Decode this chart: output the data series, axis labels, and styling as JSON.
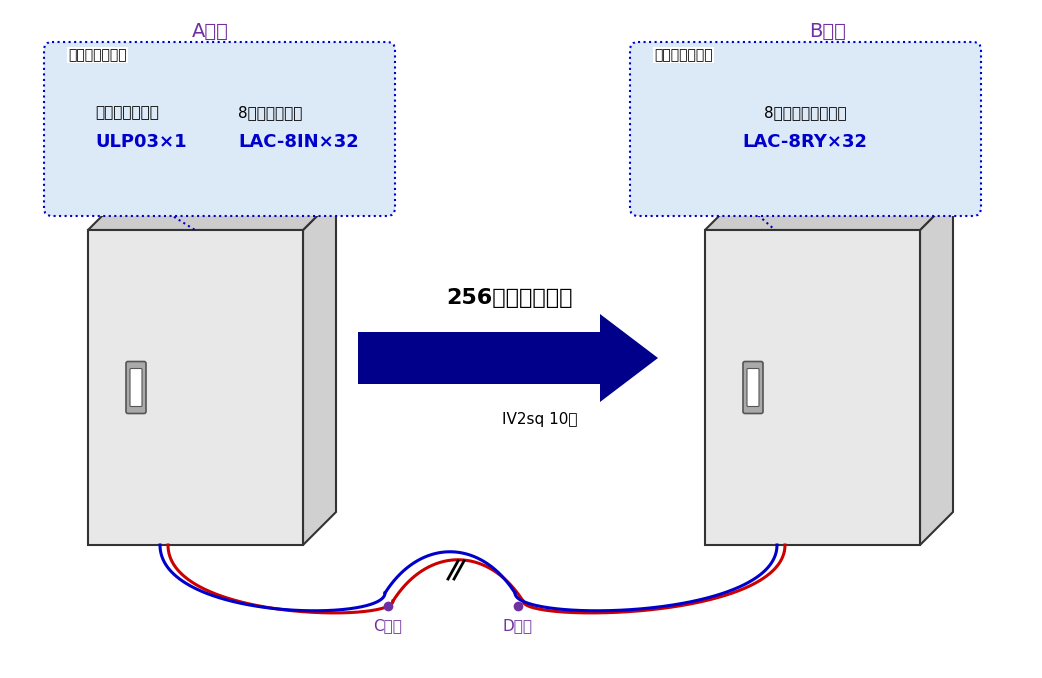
{
  "bg_color": "#ffffff",
  "fig_width": 10.42,
  "fig_height": 6.78,
  "a_label": "A地点",
  "b_label": "B地点",
  "a_label_color": "#7030A0",
  "b_label_color": "#7030A0",
  "sender_unit_label": "送り側ユニット",
  "receiver_unit_label": "受け側ユニット",
  "sender_box1_line1": "伝送メイン基板",
  "sender_box1_line2": "ULP03×1",
  "sender_box2_line1": "8接点入力基板",
  "sender_box2_line2": "LAC-8IN×32",
  "receiver_box1_line1": "8点リレー出力基板",
  "receiver_box1_line2": "LAC-8RY×32",
  "bubble_bg": "#dce9f7",
  "bubble_border": "#0000cc",
  "text_dark": "#000000",
  "text_blue": "#0000cc",
  "text_purple": "#7030A0",
  "arrow_label": "256点の接点信号",
  "arrow_color": "#00008B",
  "cable_label": "IV2sq 10㎨",
  "cable_label_color": "#000000",
  "c_label": "C地点",
  "d_label": "D地点",
  "cd_label_color": "#7030A0",
  "cabinet_face_color": "#e8e8e8",
  "cabinet_side_color": "#d0d0d0",
  "cabinet_top_color": "#cccccc",
  "cabinet_border_color": "#333333",
  "cable_red": "#cc0000",
  "cable_blue": "#0000cc"
}
